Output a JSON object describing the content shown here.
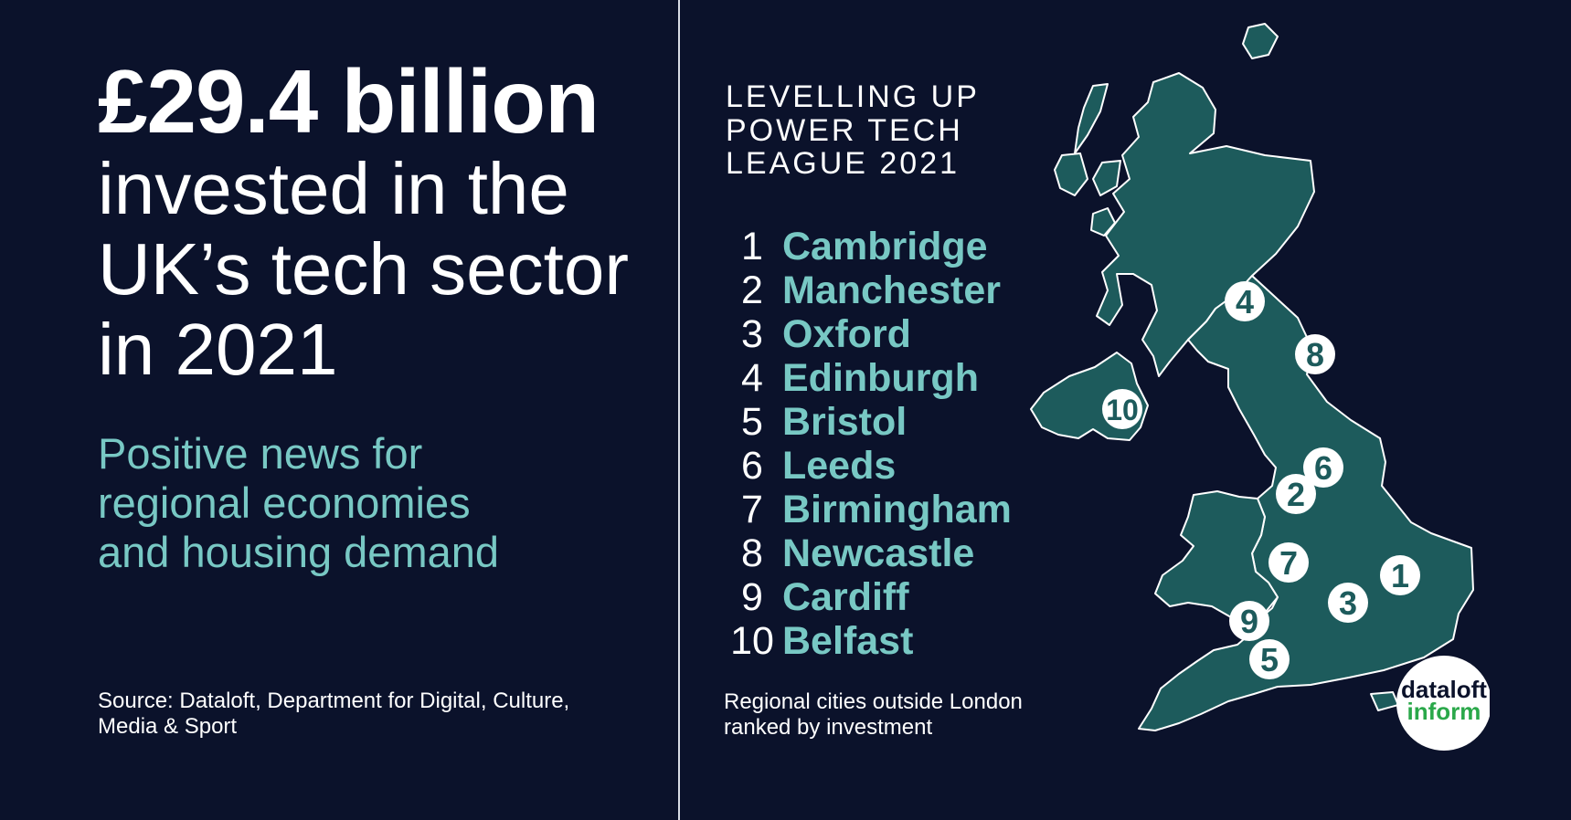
{
  "headline": "£29.4 billion",
  "subhead_lines": [
    "invested in the",
    "UK’s tech sector",
    "in 2021"
  ],
  "tagline_lines": [
    "Positive news for",
    "regional economies",
    "and housing demand"
  ],
  "source_lines": [
    "Source: Dataloft, Department for Digital, Culture,",
    "Media & Sport"
  ],
  "league_title_lines": [
    "LEVELLING UP",
    "POWER TECH",
    "LEAGUE 2021"
  ],
  "ranking": [
    {
      "rank": "1",
      "city": "Cambridge"
    },
    {
      "rank": "2",
      "city": "Manchester"
    },
    {
      "rank": "3",
      "city": "Oxford"
    },
    {
      "rank": "4",
      "city": "Edinburgh"
    },
    {
      "rank": "5",
      "city": "Bristol"
    },
    {
      "rank": "6",
      "city": "Leeds"
    },
    {
      "rank": "7",
      "city": "Birmingham"
    },
    {
      "rank": "8",
      "city": "Newcastle"
    },
    {
      "rank": "9",
      "city": "Cardiff"
    },
    {
      "rank": "10",
      "city": "Belfast"
    }
  ],
  "note_lines": [
    "Regional cities outside London",
    "ranked by investment"
  ],
  "map_markers": [
    "4",
    "8",
    "10",
    "6",
    "2",
    "7",
    "1",
    "3",
    "9",
    "5"
  ],
  "logo": {
    "line1": "dataloft",
    "line2": "inform"
  },
  "colors": {
    "background": "#0b122b",
    "accent": "#78c8c4",
    "map_fill": "#1d5b5c",
    "logo_green": "#2aa84a"
  }
}
